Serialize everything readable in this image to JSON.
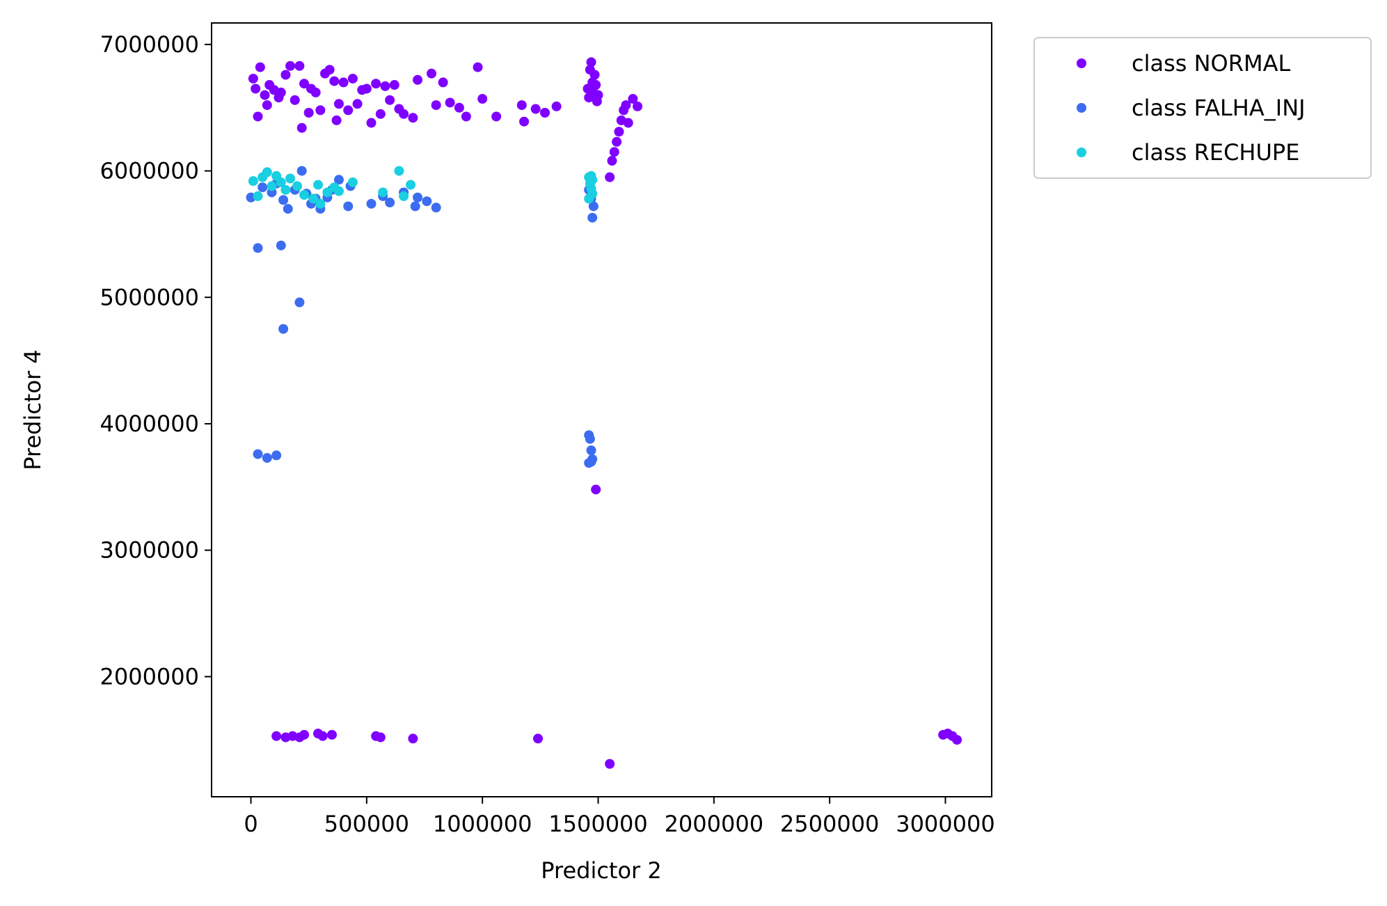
{
  "chart_data": {
    "type": "scatter",
    "title": "",
    "xlabel": "Predictor 2",
    "ylabel": "Predictor 4",
    "xlim": [
      -170000,
      3200000
    ],
    "ylim": [
      1050000,
      7170000
    ],
    "xticks": [
      0,
      500000,
      1000000,
      1500000,
      2000000,
      2500000,
      3000000
    ],
    "xtick_labels": [
      "0",
      "500000",
      "1000000",
      "1500000",
      "2000000",
      "2500000",
      "3000000"
    ],
    "yticks": [
      2000000,
      3000000,
      4000000,
      5000000,
      6000000,
      7000000
    ],
    "ytick_labels": [
      "2000000",
      "3000000",
      "4000000",
      "5000000",
      "6000000",
      "7000000"
    ],
    "grid": false,
    "legend": "outside-upper-right",
    "series": [
      {
        "name": "class NORMAL",
        "color": "#8000ff",
        "points": [
          [
            10000,
            6730000
          ],
          [
            20000,
            6650000
          ],
          [
            40000,
            6820000
          ],
          [
            60000,
            6600000
          ],
          [
            70000,
            6520000
          ],
          [
            80000,
            6680000
          ],
          [
            100000,
            6640000
          ],
          [
            120000,
            6580000
          ],
          [
            150000,
            6760000
          ],
          [
            170000,
            6830000
          ],
          [
            190000,
            6560000
          ],
          [
            210000,
            6830000
          ],
          [
            230000,
            6690000
          ],
          [
            250000,
            6460000
          ],
          [
            260000,
            6650000
          ],
          [
            280000,
            6620000
          ],
          [
            300000,
            6480000
          ],
          [
            320000,
            6770000
          ],
          [
            340000,
            6800000
          ],
          [
            360000,
            6710000
          ],
          [
            380000,
            6530000
          ],
          [
            400000,
            6700000
          ],
          [
            420000,
            6480000
          ],
          [
            440000,
            6730000
          ],
          [
            460000,
            6530000
          ],
          [
            480000,
            6640000
          ],
          [
            500000,
            6650000
          ],
          [
            520000,
            6380000
          ],
          [
            540000,
            6690000
          ],
          [
            560000,
            6450000
          ],
          [
            580000,
            6670000
          ],
          [
            600000,
            6560000
          ],
          [
            620000,
            6680000
          ],
          [
            640000,
            6490000
          ],
          [
            660000,
            6450000
          ],
          [
            700000,
            6420000
          ],
          [
            720000,
            6720000
          ],
          [
            780000,
            6770000
          ],
          [
            800000,
            6520000
          ],
          [
            830000,
            6700000
          ],
          [
            860000,
            6540000
          ],
          [
            900000,
            6500000
          ],
          [
            930000,
            6430000
          ],
          [
            980000,
            6820000
          ],
          [
            1000000,
            6570000
          ],
          [
            1060000,
            6430000
          ],
          [
            1170000,
            6520000
          ],
          [
            1180000,
            6390000
          ],
          [
            1230000,
            6490000
          ],
          [
            1270000,
            6460000
          ],
          [
            1320000,
            6510000
          ],
          [
            30000,
            6430000
          ],
          [
            130000,
            6620000
          ],
          [
            220000,
            6340000
          ],
          [
            370000,
            6400000
          ],
          [
            1455000,
            6650000
          ],
          [
            1460000,
            6580000
          ],
          [
            1465000,
            6800000
          ],
          [
            1470000,
            6860000
          ],
          [
            1475000,
            6700000
          ],
          [
            1480000,
            6620000
          ],
          [
            1485000,
            6760000
          ],
          [
            1490000,
            6680000
          ],
          [
            1495000,
            6550000
          ],
          [
            1500000,
            6600000
          ],
          [
            1550000,
            5950000
          ],
          [
            1560000,
            6080000
          ],
          [
            1570000,
            6150000
          ],
          [
            1580000,
            6230000
          ],
          [
            1590000,
            6310000
          ],
          [
            1600000,
            6400000
          ],
          [
            1610000,
            6480000
          ],
          [
            1620000,
            6520000
          ],
          [
            1630000,
            6380000
          ],
          [
            1650000,
            6570000
          ],
          [
            1670000,
            6510000
          ],
          [
            1490000,
            3480000
          ],
          [
            110000,
            1530000
          ],
          [
            150000,
            1520000
          ],
          [
            180000,
            1530000
          ],
          [
            210000,
            1520000
          ],
          [
            230000,
            1540000
          ],
          [
            290000,
            1550000
          ],
          [
            310000,
            1530000
          ],
          [
            350000,
            1540000
          ],
          [
            540000,
            1530000
          ],
          [
            560000,
            1520000
          ],
          [
            700000,
            1510000
          ],
          [
            1240000,
            1510000
          ],
          [
            1550000,
            1310000
          ],
          [
            2990000,
            1540000
          ],
          [
            3010000,
            1550000
          ],
          [
            3030000,
            1530000
          ],
          [
            3050000,
            1500000
          ]
        ]
      },
      {
        "name": "class FALHA_INJ",
        "color": "#3c6df0",
        "points": [
          [
            0,
            5790000
          ],
          [
            50000,
            5870000
          ],
          [
            90000,
            5830000
          ],
          [
            110000,
            5900000
          ],
          [
            140000,
            5770000
          ],
          [
            160000,
            5700000
          ],
          [
            190000,
            5850000
          ],
          [
            220000,
            6000000
          ],
          [
            240000,
            5820000
          ],
          [
            260000,
            5740000
          ],
          [
            280000,
            5780000
          ],
          [
            300000,
            5700000
          ],
          [
            330000,
            5790000
          ],
          [
            350000,
            5850000
          ],
          [
            380000,
            5930000
          ],
          [
            420000,
            5720000
          ],
          [
            430000,
            5880000
          ],
          [
            520000,
            5740000
          ],
          [
            570000,
            5800000
          ],
          [
            600000,
            5750000
          ],
          [
            660000,
            5830000
          ],
          [
            710000,
            5720000
          ],
          [
            720000,
            5790000
          ],
          [
            760000,
            5760000
          ],
          [
            800000,
            5710000
          ],
          [
            1460000,
            5850000
          ],
          [
            1470000,
            5780000
          ],
          [
            1480000,
            5720000
          ],
          [
            1475000,
            5630000
          ],
          [
            30000,
            5390000
          ],
          [
            130000,
            5410000
          ],
          [
            210000,
            4960000
          ],
          [
            140000,
            4750000
          ],
          [
            30000,
            3760000
          ],
          [
            70000,
            3730000
          ],
          [
            110000,
            3750000
          ],
          [
            1460000,
            3910000
          ],
          [
            1465000,
            3880000
          ],
          [
            1470000,
            3790000
          ],
          [
            1475000,
            3720000
          ],
          [
            1460000,
            3690000
          ],
          [
            1470000,
            3700000
          ]
        ]
      },
      {
        "name": "class RECHUPE",
        "color": "#19cfe0",
        "points": [
          [
            10000,
            5920000
          ],
          [
            30000,
            5800000
          ],
          [
            50000,
            5950000
          ],
          [
            70000,
            5990000
          ],
          [
            90000,
            5880000
          ],
          [
            110000,
            5960000
          ],
          [
            130000,
            5910000
          ],
          [
            150000,
            5850000
          ],
          [
            170000,
            5940000
          ],
          [
            200000,
            5880000
          ],
          [
            230000,
            5810000
          ],
          [
            270000,
            5780000
          ],
          [
            290000,
            5890000
          ],
          [
            300000,
            5740000
          ],
          [
            330000,
            5830000
          ],
          [
            360000,
            5870000
          ],
          [
            380000,
            5840000
          ],
          [
            440000,
            5910000
          ],
          [
            570000,
            5830000
          ],
          [
            640000,
            6000000
          ],
          [
            660000,
            5800000
          ],
          [
            690000,
            5890000
          ],
          [
            1460000,
            5950000
          ],
          [
            1465000,
            5900000
          ],
          [
            1470000,
            5860000
          ],
          [
            1475000,
            5820000
          ],
          [
            1460000,
            5780000
          ],
          [
            1470000,
            5960000
          ],
          [
            1475000,
            5930000
          ]
        ]
      }
    ]
  }
}
